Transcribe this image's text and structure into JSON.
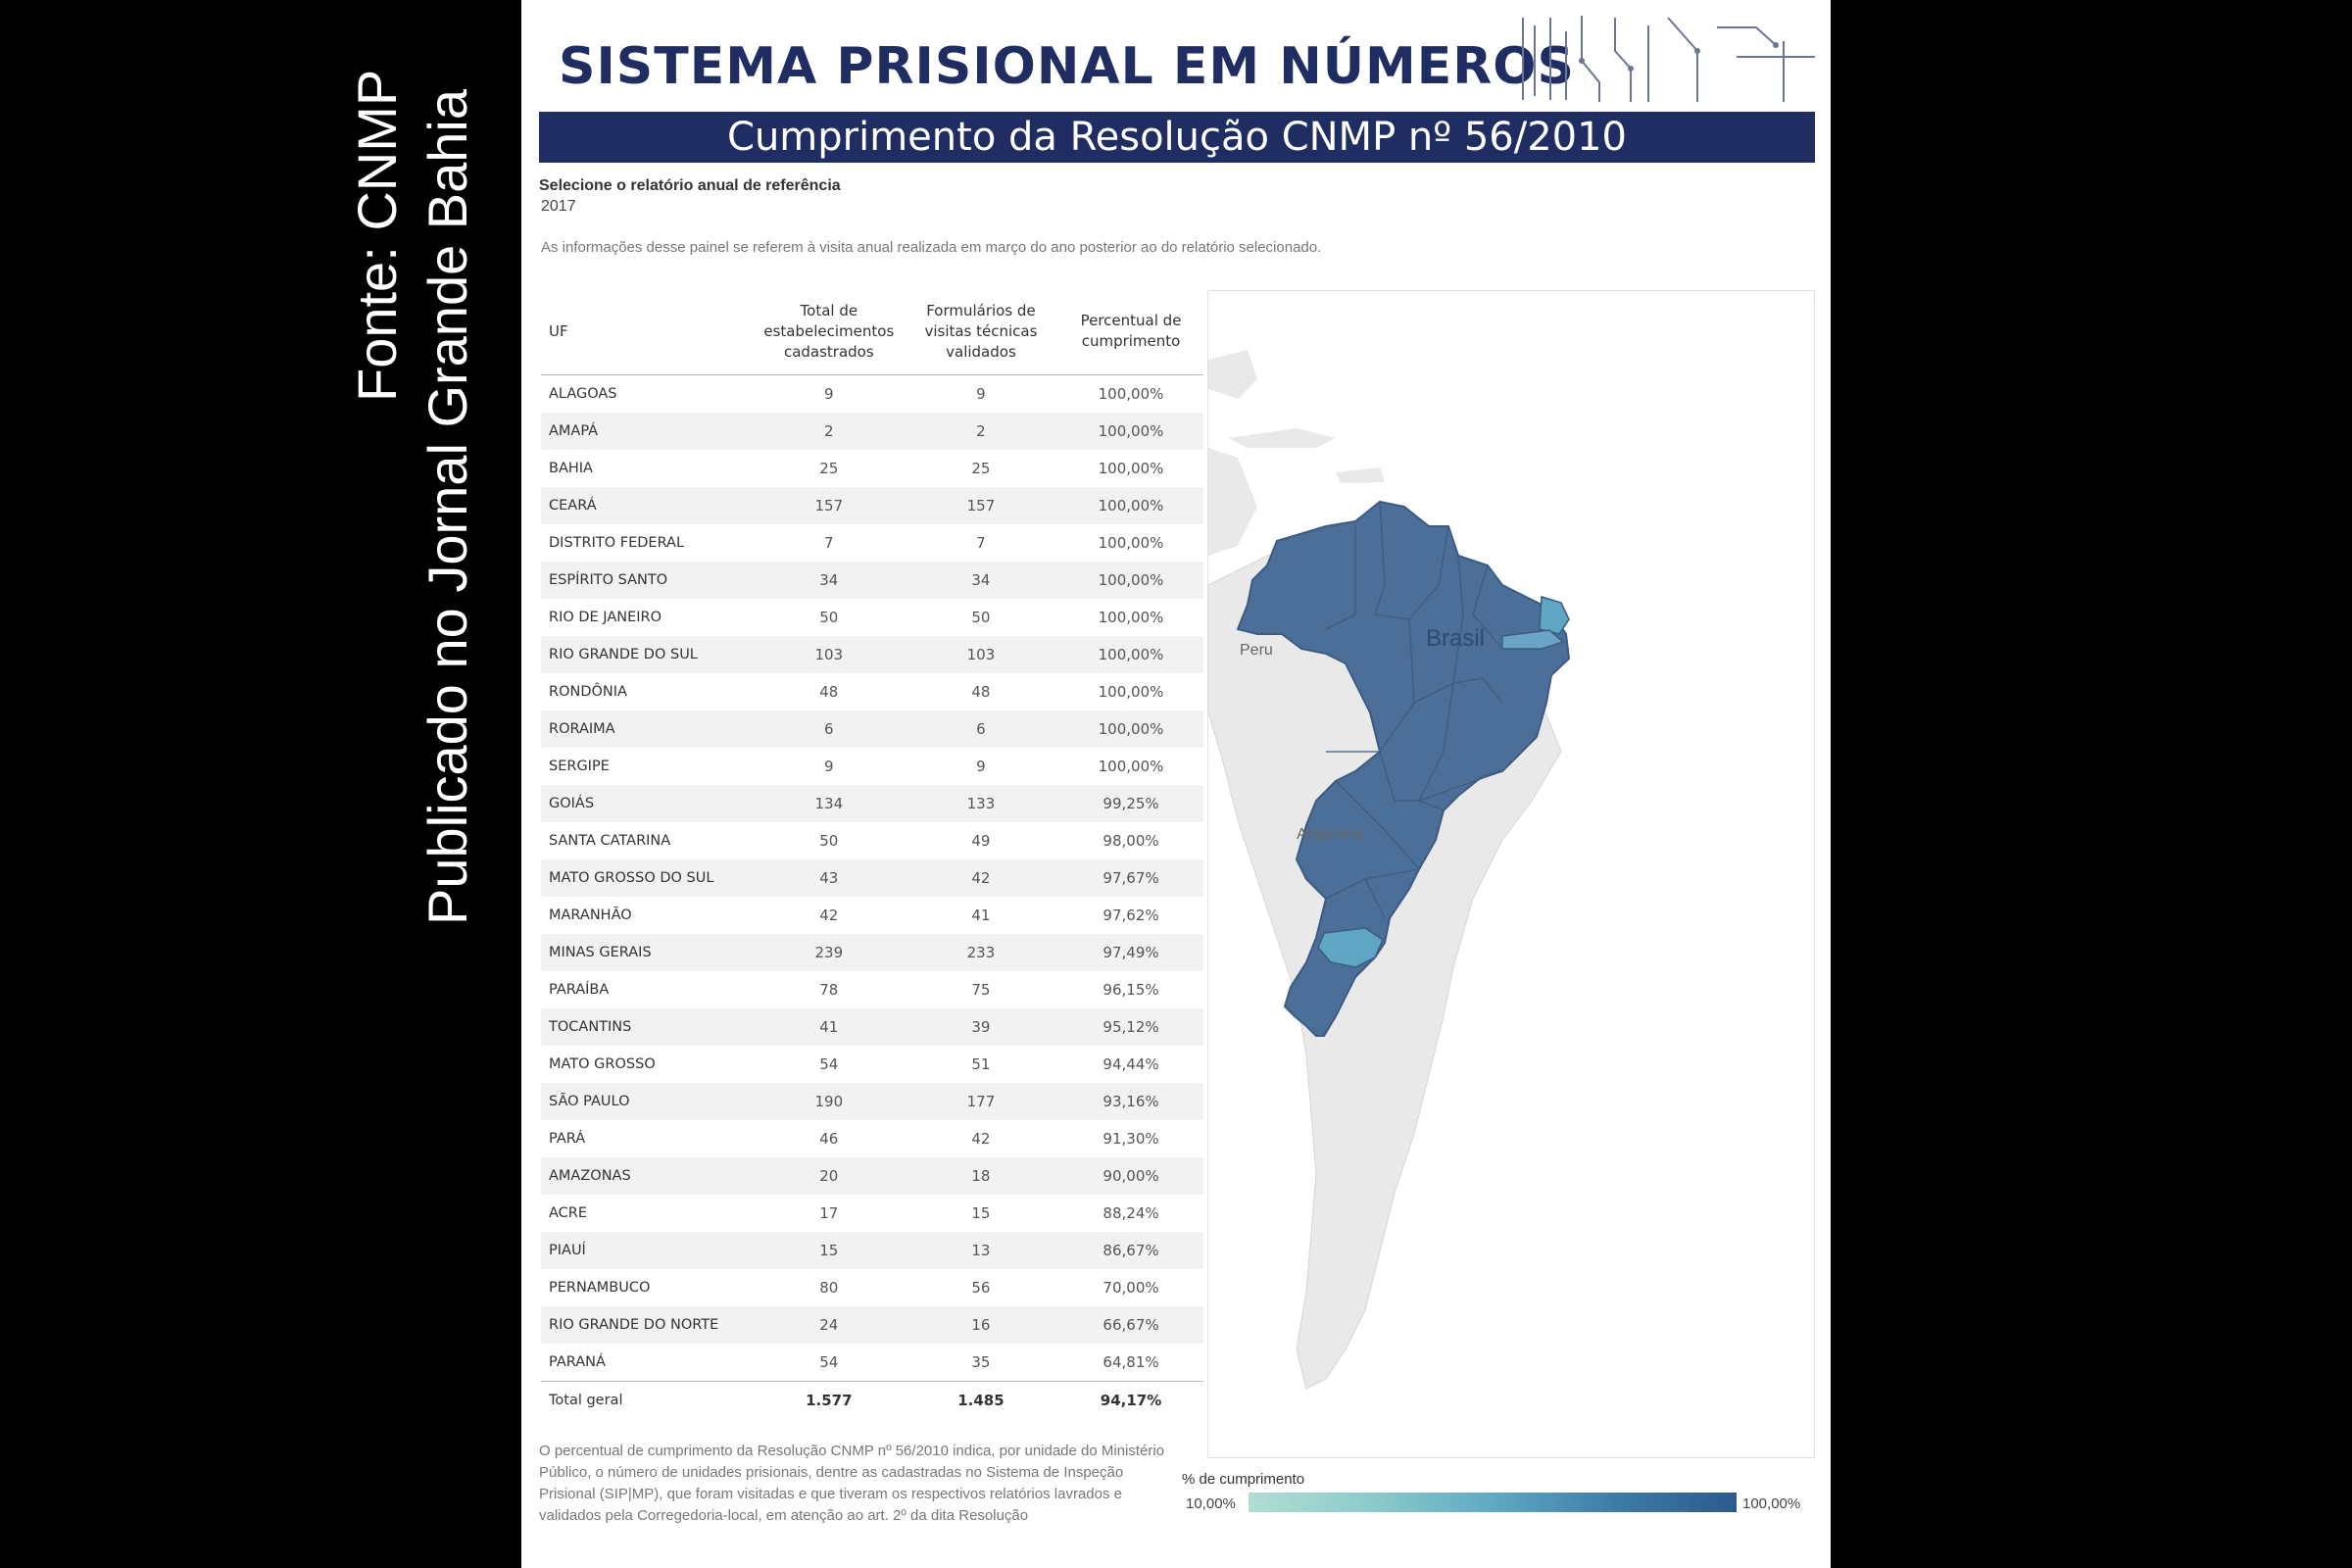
{
  "side_caption": {
    "line1": "Fonte: CNMP",
    "line2": "Publicado no Jornal Grande Bahia"
  },
  "header": {
    "title": "SISTEMA PRISIONAL EM NÚMEROS",
    "subtitle": "Cumprimento da Resolução CNMP nº 56/2010"
  },
  "filter": {
    "label": "Selecione o relatório anual de referência",
    "value": "2017"
  },
  "info_note": "As informações desse painel se referem à visita anual realizada em março do ano posterior ao do relatório selecionado.",
  "table": {
    "headers": {
      "uf": "UF",
      "total": [
        "Total de",
        "estabelecimentos",
        "cadastrados"
      ],
      "forms": [
        "Formulários de",
        "visitas técnicas",
        "validados"
      ],
      "pct": [
        "Percentual de",
        "cumprimento"
      ]
    },
    "rows": [
      [
        "ALAGOAS",
        "9",
        "9",
        "100,00%"
      ],
      [
        "AMAPÁ",
        "2",
        "2",
        "100,00%"
      ],
      [
        "BAHIA",
        "25",
        "25",
        "100,00%"
      ],
      [
        "CEARÁ",
        "157",
        "157",
        "100,00%"
      ],
      [
        "DISTRITO FEDERAL",
        "7",
        "7",
        "100,00%"
      ],
      [
        "ESPÍRITO SANTO",
        "34",
        "34",
        "100,00%"
      ],
      [
        "RIO DE JANEIRO",
        "50",
        "50",
        "100,00%"
      ],
      [
        "RIO GRANDE DO SUL",
        "103",
        "103",
        "100,00%"
      ],
      [
        "RONDÔNIA",
        "48",
        "48",
        "100,00%"
      ],
      [
        "RORAIMA",
        "6",
        "6",
        "100,00%"
      ],
      [
        "SERGIPE",
        "9",
        "9",
        "100,00%"
      ],
      [
        "GOIÁS",
        "134",
        "133",
        "99,25%"
      ],
      [
        "SANTA CATARINA",
        "50",
        "49",
        "98,00%"
      ],
      [
        "MATO GROSSO DO SUL",
        "43",
        "42",
        "97,67%"
      ],
      [
        "MARANHÃO",
        "42",
        "41",
        "97,62%"
      ],
      [
        "MINAS GERAIS",
        "239",
        "233",
        "97,49%"
      ],
      [
        "PARAÍBA",
        "78",
        "75",
        "96,15%"
      ],
      [
        "TOCANTINS",
        "41",
        "39",
        "95,12%"
      ],
      [
        "MATO GROSSO",
        "54",
        "51",
        "94,44%"
      ],
      [
        "SÃO PAULO",
        "190",
        "177",
        "93,16%"
      ],
      [
        "PARÁ",
        "46",
        "42",
        "91,30%"
      ],
      [
        "AMAZONAS",
        "20",
        "18",
        "90,00%"
      ],
      [
        "ACRE",
        "17",
        "15",
        "88,24%"
      ],
      [
        "PIAUÍ",
        "15",
        "13",
        "86,67%"
      ],
      [
        "PERNAMBUCO",
        "80",
        "56",
        "70,00%"
      ],
      [
        "RIO GRANDE DO NORTE",
        "24",
        "16",
        "66,67%"
      ],
      [
        "PARANÁ",
        "54",
        "35",
        "64,81%"
      ]
    ],
    "total": [
      "Total geral",
      "1.577",
      "1.485",
      "94,17%"
    ]
  },
  "foot_note": "O percentual de cumprimento da Resolução CNMP nº 56/2010 indica, por unidade do Ministério Público, o número de unidades prisionais, dentre as cadastradas no Sistema de Inspeção Prisional (SIP|MP), que foram visitadas e que tiveram os respectivos relatórios lavrados e validados pela Corregedoria-local, em atenção ao art. 2º da dita Resolução",
  "map": {
    "label_peru": "Peru",
    "label_brasil": "Brasil",
    "label_argentina": "Argentina"
  },
  "legend": {
    "title": "% de cumprimento",
    "min": "10,00%",
    "max": "100,00%"
  },
  "colors": {
    "navy": "#1f2d62",
    "state_fill": "#4b6f99",
    "state_light": "#5fa6c4",
    "land": "#e9e9e9"
  }
}
